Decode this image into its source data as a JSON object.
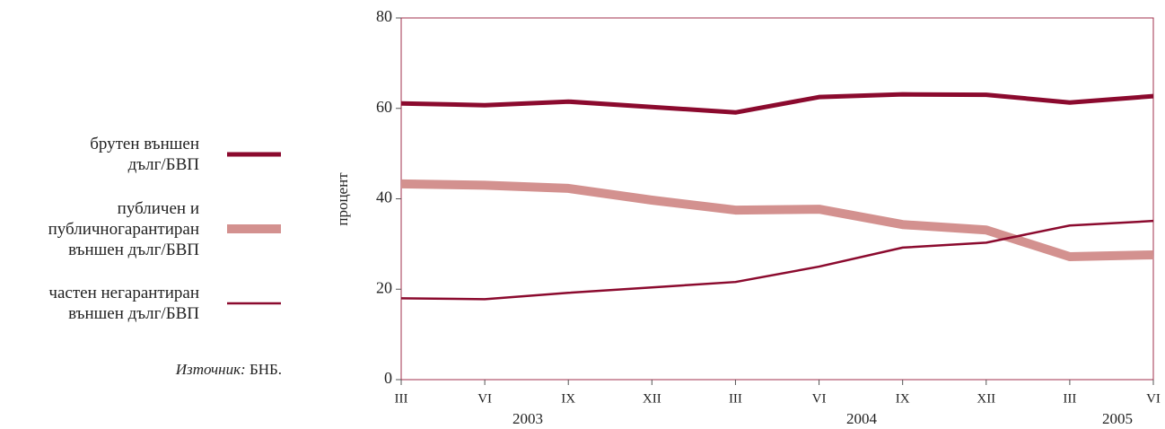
{
  "chart_data": {
    "type": "line",
    "categories": [
      "III",
      "VI",
      "IX",
      "XII",
      "III",
      "VI",
      "IX",
      "XII",
      "III",
      "VI"
    ],
    "years": [
      "2003",
      "2004",
      "2005"
    ],
    "ylabel": "процент",
    "ylim": [
      0,
      80
    ],
    "yticks": [
      0,
      20,
      40,
      60,
      80
    ],
    "series": [
      {
        "name": "брутен външен\nдълг/БВП",
        "color": "#8b0a2e",
        "values": [
          61.1,
          60.7,
          61.5,
          60.3,
          59.1,
          62.5,
          63.1,
          63.0,
          61.3,
          62.7
        ]
      },
      {
        "name": "публичен и\nпубличногарантиран\nвъншен дълг/БВП",
        "color": "#d3918f",
        "values": [
          43.3,
          43.0,
          42.3,
          39.7,
          37.5,
          37.7,
          34.3,
          33.1,
          27.2,
          27.6
        ]
      },
      {
        "name": "частен негарантиран\nвъншен дълг/БВП",
        "color": "#8b0a2e",
        "values": [
          18.0,
          17.8,
          19.2,
          20.4,
          21.6,
          25.0,
          29.2,
          30.3,
          34.1,
          35.1
        ]
      }
    ],
    "source": {
      "label": "Източник:",
      "text": "БНБ."
    }
  }
}
